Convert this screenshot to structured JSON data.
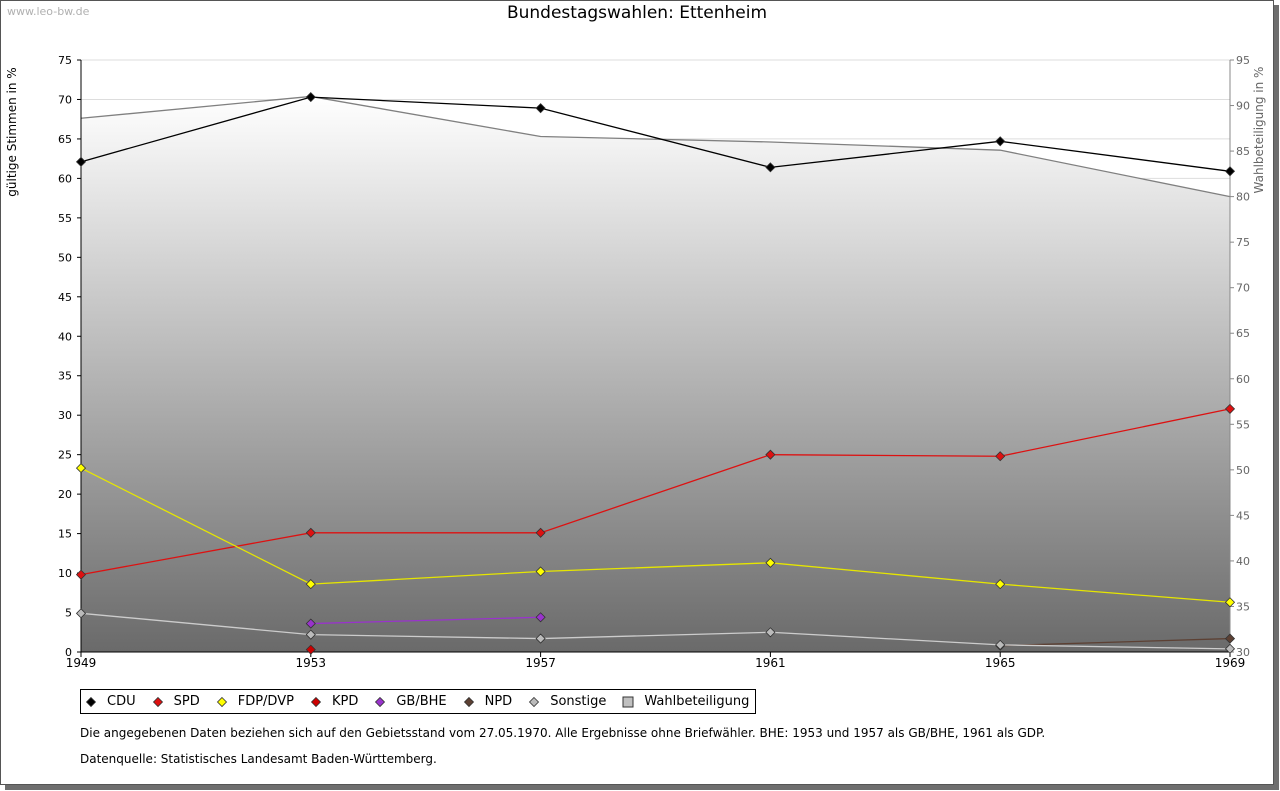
{
  "header": {
    "watermark": "www.leo-bw.de",
    "title": "Bundestagswahlen: Ettenheim"
  },
  "chart_data": {
    "type": "line",
    "title": "Bundestagswahlen: Ettenheim",
    "x": [
      "1949",
      "1953",
      "1957",
      "1961",
      "1965",
      "1969"
    ],
    "ylabel_left": "gültige Stimmen in %",
    "ylabel_right": "Wahlbeteiligung in %",
    "ylim_left": [
      0,
      75
    ],
    "ylim_right": [
      30,
      95
    ],
    "yticks_left": [
      0,
      5,
      10,
      15,
      20,
      25,
      30,
      35,
      40,
      45,
      50,
      55,
      60,
      65,
      70,
      75
    ],
    "yticks_right": [
      30,
      35,
      40,
      45,
      50,
      55,
      60,
      65,
      70,
      75,
      80,
      85,
      90,
      95
    ],
    "grid": true,
    "legend_position": "bottom",
    "area_series": {
      "name": "Wahlbeteiligung",
      "axis": "right",
      "values": [
        88.6,
        91.0,
        86.6,
        86.0,
        85.1,
        80.0
      ]
    },
    "series": [
      {
        "name": "CDU",
        "color": "#000000",
        "line": "#000000",
        "values": [
          62.1,
          70.3,
          68.9,
          61.4,
          64.7,
          60.9
        ]
      },
      {
        "name": "SPD",
        "color": "#dd1111",
        "line": "#dd1111",
        "values": [
          9.8,
          15.1,
          15.1,
          25.0,
          24.8,
          30.8
        ]
      },
      {
        "name": "FDP/DVP",
        "color": "#ffff00",
        "line": "#e6e600",
        "values": [
          23.3,
          8.6,
          10.2,
          11.3,
          8.6,
          6.3
        ]
      },
      {
        "name": "KPD",
        "color": "#cc0000",
        "line": "#cc0000",
        "values": [
          null,
          0.3,
          null,
          null,
          null,
          null
        ]
      },
      {
        "name": "GB/BHE",
        "color": "#9933cc",
        "line": "#9933cc",
        "values": [
          null,
          3.6,
          4.4,
          null,
          null,
          null
        ]
      },
      {
        "name": "NPD",
        "color": "#5c4033",
        "line": "#5c4033",
        "values": [
          null,
          null,
          null,
          null,
          0.8,
          1.7
        ]
      },
      {
        "name": "Sonstige",
        "color": "#bbbbbb",
        "line": "#cccccc",
        "values": [
          4.9,
          2.2,
          1.7,
          2.5,
          0.9,
          0.4
        ]
      }
    ]
  },
  "legend": {
    "items": [
      {
        "label": "CDU",
        "color": "#000000",
        "shape": "diamond"
      },
      {
        "label": "SPD",
        "color": "#dd1111",
        "shape": "diamond"
      },
      {
        "label": "FDP/DVP",
        "color": "#ffff00",
        "shape": "diamond"
      },
      {
        "label": "KPD",
        "color": "#cc0000",
        "shape": "diamond"
      },
      {
        "label": "GB/BHE",
        "color": "#9933cc",
        "shape": "diamond"
      },
      {
        "label": "NPD",
        "color": "#5c4033",
        "shape": "diamond"
      },
      {
        "label": "Sonstige",
        "color": "#bbbbbb",
        "shape": "diamond"
      },
      {
        "label": "Wahlbeteiligung",
        "color": "#c0c0c0",
        "shape": "square"
      }
    ]
  },
  "footer": {
    "note": "Die angegebenen Daten beziehen sich auf den Gebietsstand vom 27.05.1970. Alle Ergebnisse ohne Briefwähler. BHE: 1953 und 1957 als GB/BHE, 1961 als GDP.",
    "source": "Datenquelle: Statistisches Landesamt Baden-Württemberg."
  }
}
